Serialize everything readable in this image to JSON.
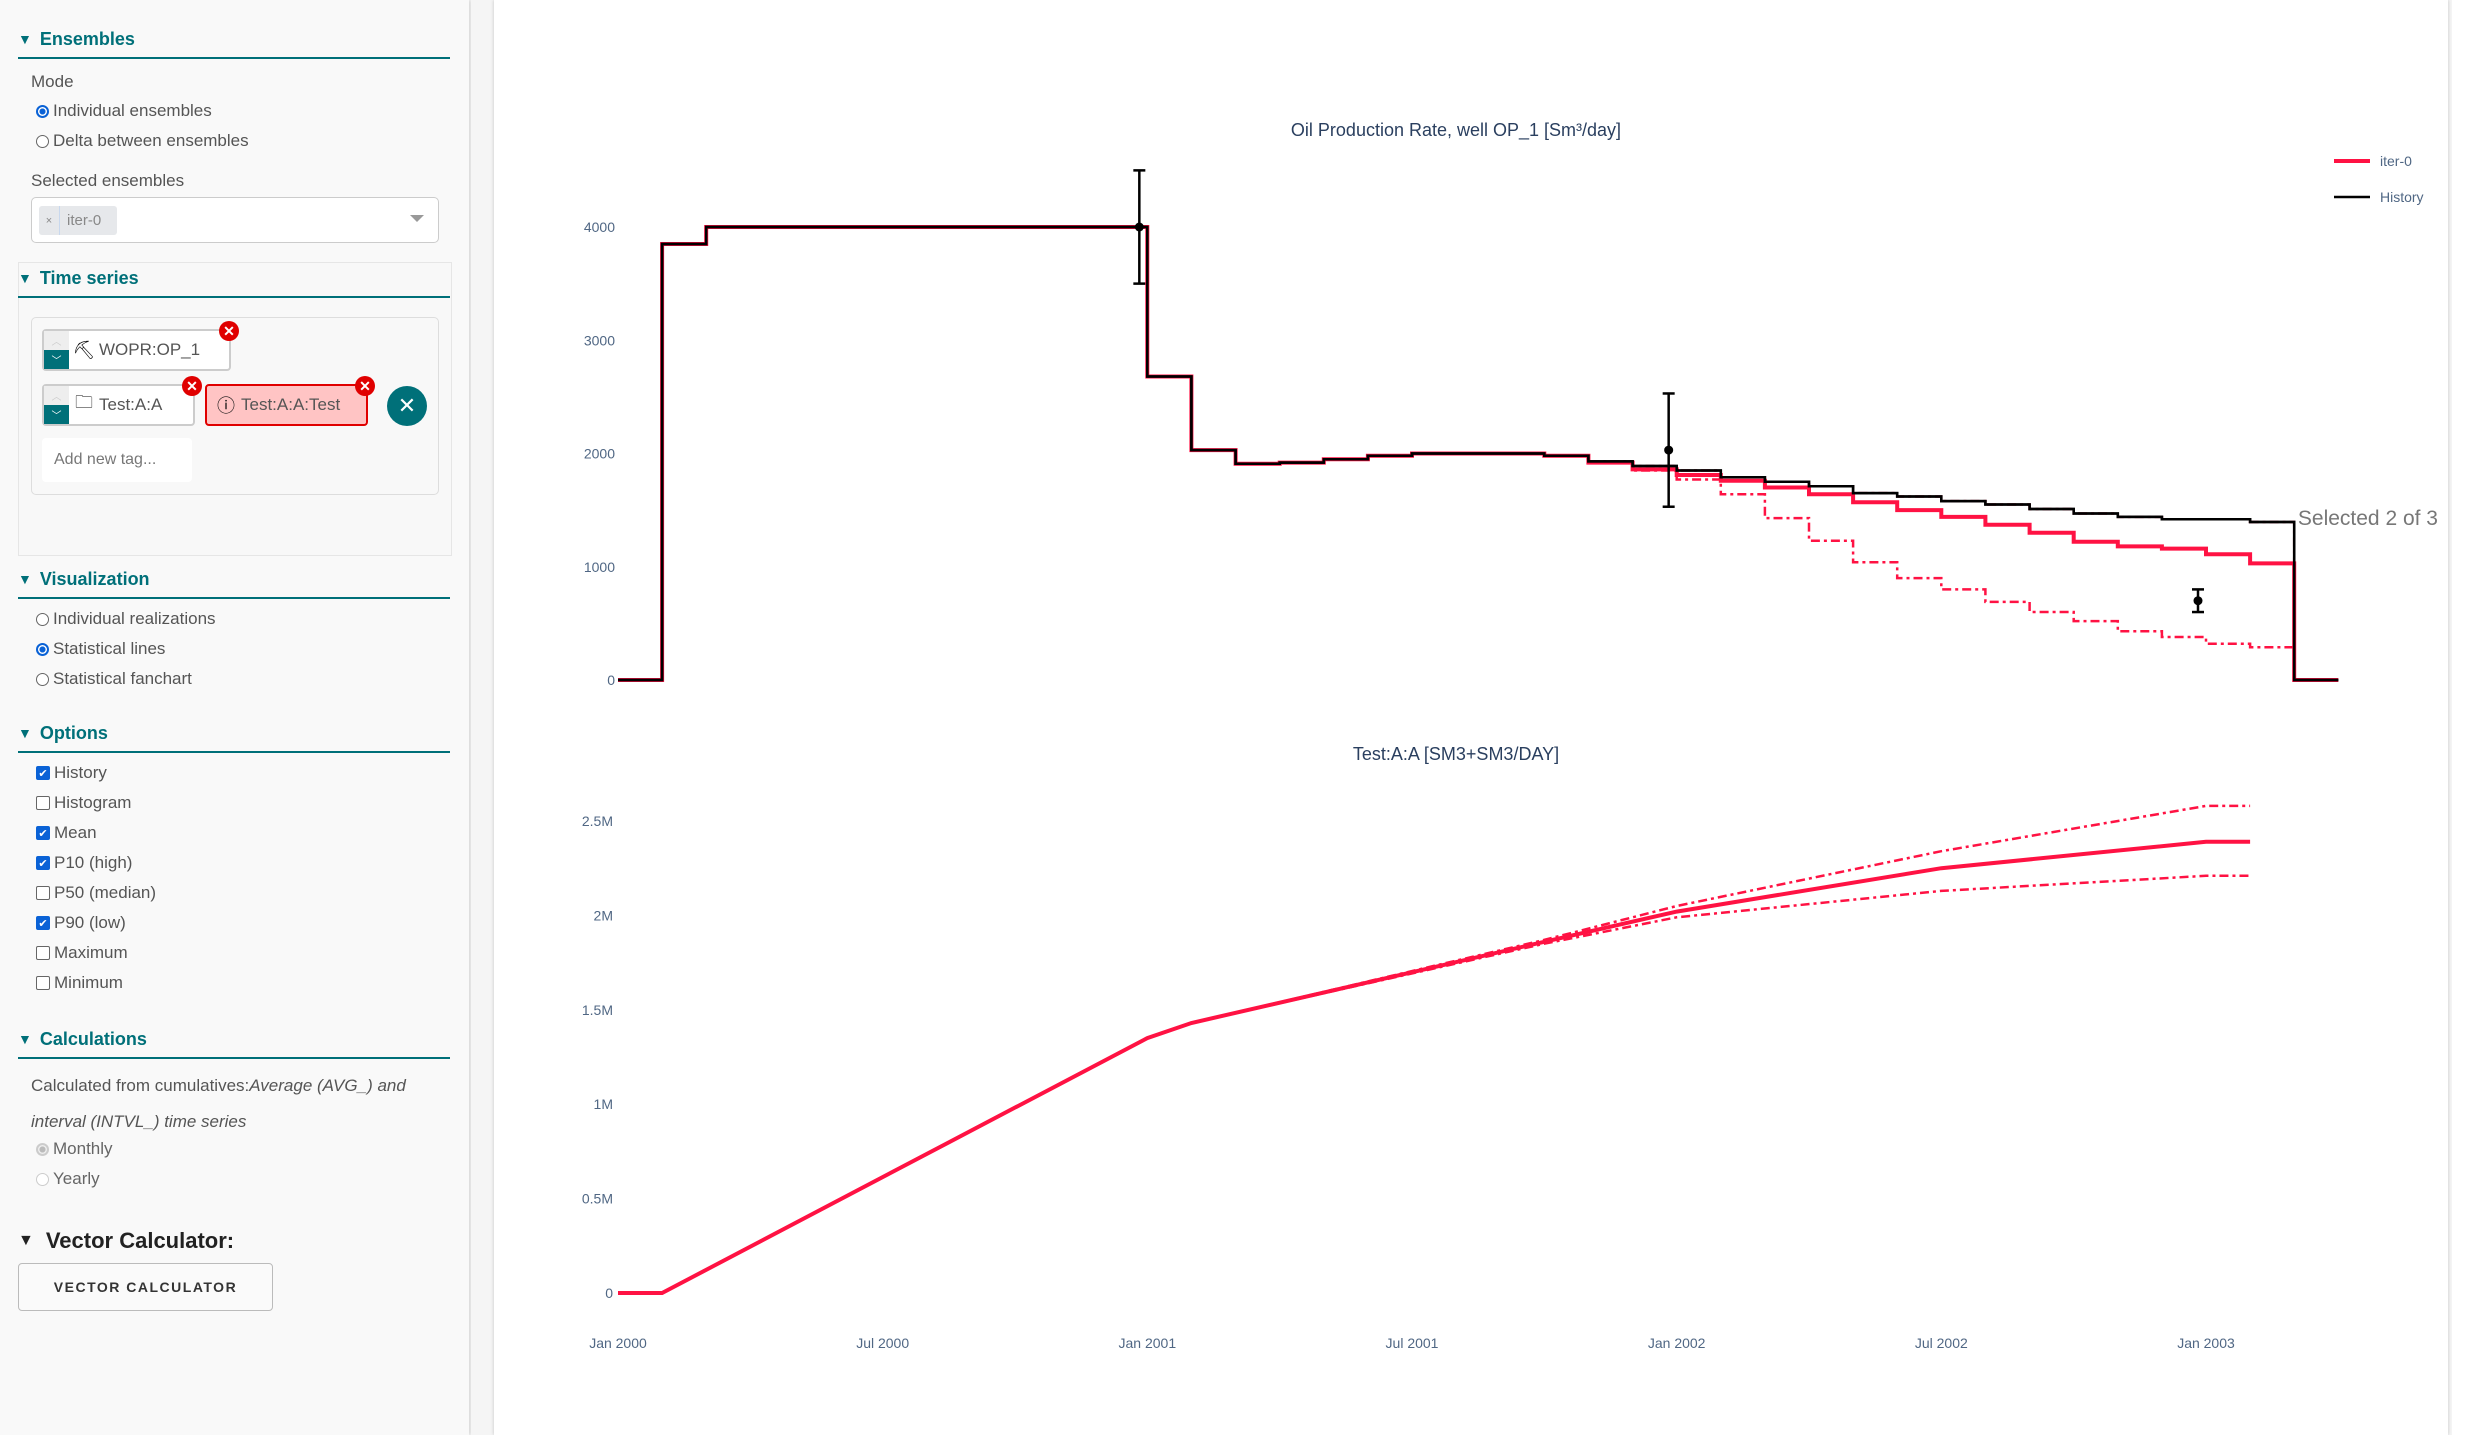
{
  "sidebar": {
    "ensembles": {
      "title": "Ensembles",
      "mode_label": "Mode",
      "modes": [
        {
          "label": "Individual ensembles",
          "checked": true
        },
        {
          "label": "Delta between ensembles",
          "checked": false
        }
      ],
      "selected_label": "Selected ensembles",
      "selected_chip": "iter-0",
      "chip_remove": "×"
    },
    "time_series": {
      "title": "Time series",
      "tags": [
        {
          "label": "WOPR:OP_1",
          "icon": "oil-pump-icon",
          "valid": true
        },
        {
          "label": "Test:A:A",
          "icon": "folder-plus-icon",
          "valid": true
        },
        {
          "label": "Test:A:A:Test",
          "icon": "warning-circle-icon",
          "valid": false
        }
      ],
      "add_placeholder": "Add new tag...",
      "selected_count": "Selected 2 of 3",
      "remove_glyph": "✕",
      "clear_glyph": "✕"
    },
    "visualization": {
      "title": "Visualization",
      "options": [
        {
          "label": "Individual realizations",
          "checked": false
        },
        {
          "label": "Statistical lines",
          "checked": true
        },
        {
          "label": "Statistical fanchart",
          "checked": false
        }
      ]
    },
    "options": {
      "title": "Options",
      "items": [
        {
          "label": "History",
          "checked": true
        },
        {
          "label": "Histogram",
          "checked": false
        },
        {
          "label": "Mean",
          "checked": true
        },
        {
          "label": "P10 (high)",
          "checked": true
        },
        {
          "label": "P50 (median)",
          "checked": false
        },
        {
          "label": "P90 (low)",
          "checked": true
        },
        {
          "label": "Maximum",
          "checked": false
        },
        {
          "label": "Minimum",
          "checked": false
        }
      ]
    },
    "calculations": {
      "title": "Calculations",
      "text_plain": "Calculated from cumulatives:",
      "text_italic": "Average (AVG_) and interval (INTVL_) time series",
      "frequencies": [
        {
          "label": "Monthly",
          "checked": true,
          "disabled": true
        },
        {
          "label": "Yearly",
          "checked": false,
          "disabled": true
        }
      ]
    },
    "vector_calculator": {
      "title": "Vector Calculator:",
      "button": "VECTOR CALCULATOR"
    }
  },
  "colors": {
    "accent": "#007079",
    "ensemble": "#ff1243",
    "history": "#000000",
    "tag_error_bg": "#ffc4c4",
    "tag_error_border": "#e00000",
    "axis_text": "#506784"
  },
  "chart_data": [
    {
      "type": "line",
      "title": "Oil Production Rate, well OP_1 [Sm³/day]",
      "xlabel": "",
      "ylabel": "",
      "ylim": [
        0,
        4700
      ],
      "yticks": [
        "0",
        "1000",
        "2000",
        "3000",
        "4000"
      ],
      "line_shape": "step (hv)",
      "x_start": "Jan 2000",
      "x_step": "monthly",
      "legend": [
        "iter-0",
        "History"
      ],
      "legend_position": "top-right",
      "series": [
        {
          "name": "History",
          "color": "#000000",
          "style": "solid",
          "values": [
            0,
            3850,
            4000,
            4000,
            4000,
            4000,
            4000,
            4000,
            4000,
            4000,
            4000,
            4000,
            2680,
            2030,
            1910,
            1920,
            1950,
            1980,
            2000,
            2000,
            2000,
            1980,
            1930,
            1890,
            1850,
            1790,
            1750,
            1710,
            1650,
            1620,
            1580,
            1550,
            1510,
            1470,
            1440,
            1420,
            1420,
            1395,
            0
          ]
        },
        {
          "name": "iter-0 mean",
          "color": "#ff1243",
          "style": "solid",
          "values": [
            0,
            3850,
            4000,
            4000,
            4000,
            4000,
            4000,
            4000,
            4000,
            4000,
            4000,
            4000,
            2680,
            2030,
            1910,
            1920,
            1950,
            1980,
            2000,
            2000,
            2000,
            1980,
            1920,
            1860,
            1810,
            1760,
            1700,
            1640,
            1570,
            1500,
            1440,
            1370,
            1300,
            1220,
            1180,
            1160,
            1110,
            1030,
            0
          ]
        },
        {
          "name": "iter-0 P10",
          "color": "#ff1243",
          "style": "dashdot",
          "values": [
            0,
            3850,
            4000,
            4000,
            4000,
            4000,
            4000,
            4000,
            4000,
            4000,
            4000,
            4000,
            2680,
            2030,
            1910,
            1920,
            1950,
            1980,
            2000,
            2000,
            2000,
            1980,
            1930,
            1890,
            1850,
            1790,
            1750,
            1710,
            1650,
            1620,
            1580,
            1550,
            1510,
            1470,
            1440,
            1420,
            1420,
            1395,
            0
          ]
        },
        {
          "name": "iter-0 P90",
          "color": "#ff1243",
          "style": "dashdot",
          "values": [
            0,
            3850,
            4000,
            4000,
            4000,
            4000,
            4000,
            4000,
            4000,
            4000,
            4000,
            4000,
            2680,
            2030,
            1910,
            1920,
            1950,
            1980,
            2000,
            2000,
            2000,
            1980,
            1920,
            1850,
            1770,
            1640,
            1430,
            1230,
            1040,
            900,
            800,
            690,
            600,
            520,
            430,
            380,
            320,
            290,
            0
          ]
        }
      ],
      "observations": [
        {
          "x": "Jan 2001",
          "value": 4000,
          "error": 500
        },
        {
          "x": "Jan 2002",
          "value": 2030,
          "error": 500
        },
        {
          "x": "Jan 2003",
          "value": 700,
          "error": 100
        }
      ]
    },
    {
      "type": "line",
      "title": "Test:A:A [SM3+SM3/DAY]",
      "xlabel": "",
      "ylabel": "",
      "ylim": [
        0,
        2800000
      ],
      "yticks": [
        "0",
        "0.5M",
        "1M",
        "1.5M",
        "2M",
        "2.5M"
      ],
      "xticks": [
        "Jan 2000",
        "Jul 2000",
        "Jan 2001",
        "Jul 2001",
        "Jan 2002",
        "Jul 2002",
        "Jan 2003"
      ],
      "x": [
        "Jan 2000",
        "Feb 2000",
        "Jan 2001",
        "Feb 2001",
        "Oct 2001",
        "Jan 2002",
        "Jul 2002",
        "Jan 2003",
        "Feb 2003"
      ],
      "series": [
        {
          "name": "iter-0 mean",
          "color": "#ff1243",
          "style": "solid",
          "values": [
            0,
            0,
            1350000,
            1430000,
            1860000,
            2020000,
            2250000,
            2390000,
            2390000
          ]
        },
        {
          "name": "iter-0 P10",
          "color": "#ff1243",
          "style": "dashdot",
          "values": [
            0,
            0,
            1350000,
            1430000,
            1870000,
            2050000,
            2340000,
            2580000,
            2580000
          ]
        },
        {
          "name": "iter-0 P90",
          "color": "#ff1243",
          "style": "dashdot",
          "values": [
            0,
            0,
            1350000,
            1430000,
            1850000,
            1990000,
            2130000,
            2210000,
            2210000
          ]
        }
      ]
    }
  ]
}
